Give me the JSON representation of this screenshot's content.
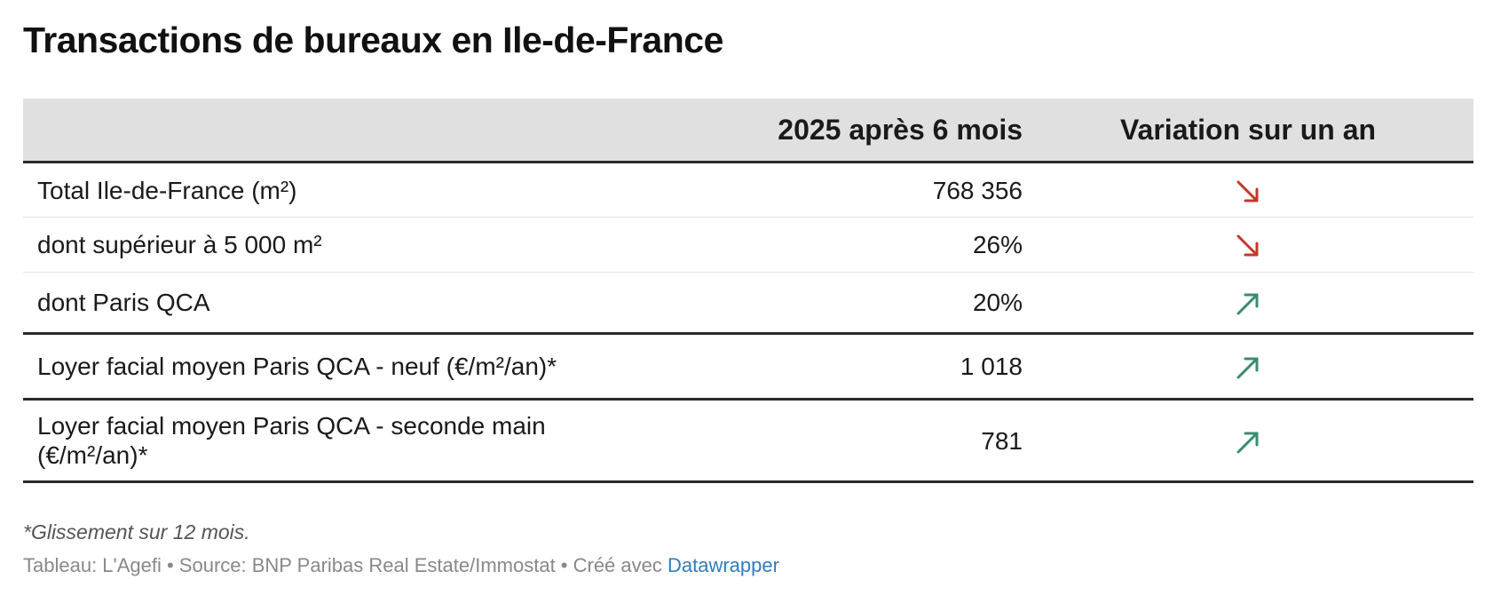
{
  "title": "Transactions de bureaux en Ile-de-France",
  "colors": {
    "header_bg": "#e0e0e0",
    "down_arrow": "#c0392b",
    "up_arrow": "#3a8c6e",
    "link": "#2f7cc0"
  },
  "chart_data": {
    "type": "table",
    "title": "Transactions de bureaux en Ile-de-France",
    "columns": [
      "",
      "2025 après 6 mois",
      "Variation sur un an"
    ],
    "rows": [
      {
        "label": "Total Ile-de-France (m²)",
        "value": "768 356",
        "variation": "down"
      },
      {
        "label": "dont supérieur à 5 000 m²",
        "value": "26%",
        "variation": "down"
      },
      {
        "label": "dont Paris QCA",
        "value": "20%",
        "variation": "up"
      },
      {
        "label": "Loyer facial moyen Paris QCA - neuf (€/m²/an)*",
        "value": "1 018",
        "variation": "up"
      },
      {
        "label": "Loyer facial moyen Paris QCA - seconde main (€/m²/an)*",
        "value": "781",
        "variation": "up"
      }
    ]
  },
  "footnote": "*Glissement sur 12 mois.",
  "source": {
    "text": "Tableau: L'Agefi • Source: BNP Paribas Real Estate/Immostat • Créé avec ",
    "link_label": "Datawrapper"
  }
}
